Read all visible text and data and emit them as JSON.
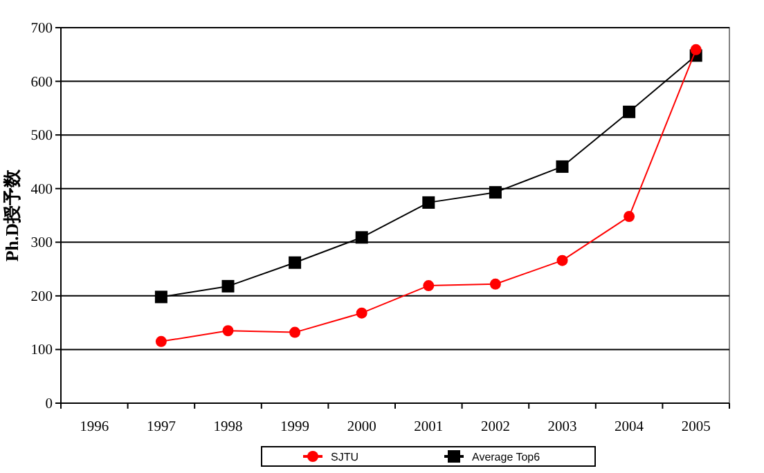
{
  "chart_data": {
    "type": "line",
    "ylabel": "Ph.D授予数",
    "categories": [
      "1996",
      "1997",
      "1998",
      "1999",
      "2000",
      "2001",
      "2002",
      "2003",
      "2004",
      "2005"
    ],
    "series": [
      {
        "name": "SJTU",
        "color": "#ff0000",
        "marker": "circle",
        "values": [
          null,
          115,
          135,
          132,
          168,
          219,
          222,
          266,
          348,
          659
        ]
      },
      {
        "name": "Average Top6",
        "color": "#000000",
        "marker": "square",
        "values": [
          null,
          198,
          218,
          262,
          309,
          374,
          393,
          441,
          543,
          648
        ]
      }
    ],
    "ylim": [
      0,
      700
    ],
    "yticks": [
      0,
      100,
      200,
      300,
      400,
      500,
      600,
      700
    ],
    "grid": "y",
    "legend": "bottom"
  }
}
